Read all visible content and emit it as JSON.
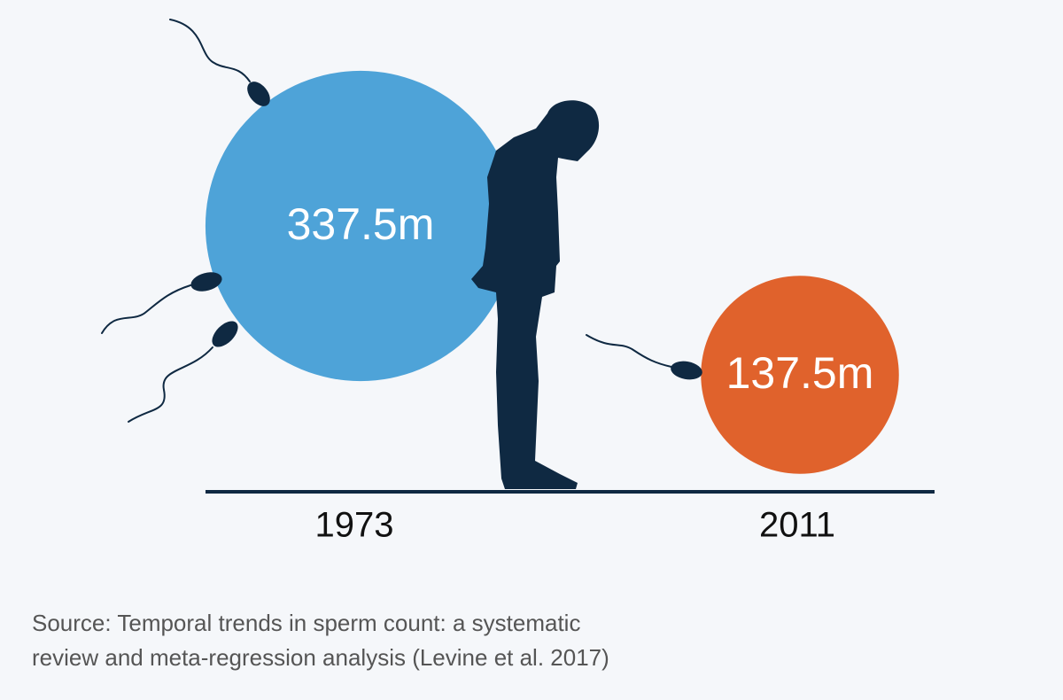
{
  "chart_data": {
    "type": "bubble",
    "categories": [
      "1973",
      "2011"
    ],
    "values": [
      337.5,
      137.5
    ],
    "value_labels": [
      "337.5m",
      "137.5m"
    ],
    "colors": [
      "#4ea3d8",
      "#e0622c"
    ],
    "source": [
      "Source: Temporal trends in sperm count: a systematic",
      "review and meta-regression analysis (Levine et al. 2017)"
    ]
  }
}
